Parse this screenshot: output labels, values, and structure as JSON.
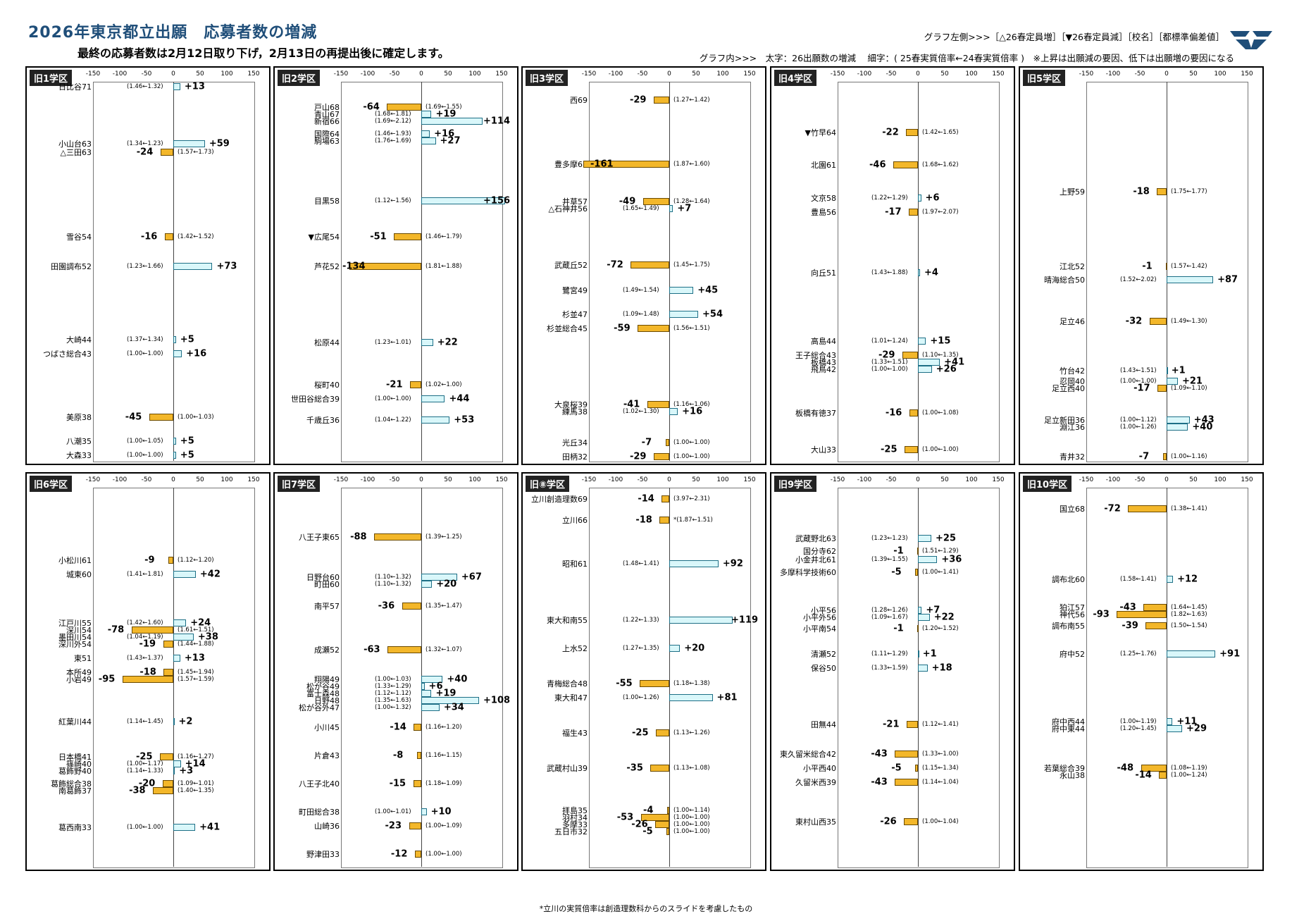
{
  "header": {
    "title": "2026年東京都立出願　応募者数の増減",
    "subtitle": "最終の応募者数は2月12日取り下げ，2月13日の再提出後に確定します。",
    "legend_left": "グラフ左側>>>［△26春定員増］［▼26春定員減］［校名］［都標準偏差値］",
    "legend_inner": "グラフ内>>>　太字：26出願数の増減　 細字：( 25春実質倍率←24春実質倍率 )　※上昇は出願減の要因、低下は出願増の要因になる",
    "footnote": "*立川の実質倍率は創造理数科からのスライドを考慮したもの",
    "logo_icon": "brand-logo-icon"
  },
  "colors": {
    "increase_fill": "#d9f7fa",
    "increase_border": "#1d6f86",
    "decrease_fill": "#f3b72a",
    "decrease_border": "#6b4a00",
    "title": "#1f4e79"
  },
  "chart_data": [
    {
      "type": "bar",
      "title": "旧1学区",
      "xlim": [
        -150,
        150
      ],
      "xticks": [
        -150,
        -100,
        -50,
        0,
        50,
        100,
        150
      ],
      "schools": [
        {
          "name": "日比谷71",
          "value": 13,
          "ratio": "(1.46←1.32)"
        },
        {
          "name": "小山台63",
          "value": 59,
          "ratio": "(1.34←1.23)"
        },
        {
          "name": "△三田63",
          "value": -24,
          "ratio": "(1.57←1.73)"
        },
        {
          "name": "雪谷54",
          "value": -16,
          "ratio": "(1.42←1.52)"
        },
        {
          "name": "田園調布52",
          "value": 73,
          "ratio": "(1.23←1.66)"
        },
        {
          "name": "大崎44",
          "value": 5,
          "ratio": "(1.37←1.34)"
        },
        {
          "name": "つばさ総合43",
          "value": 16,
          "ratio": "(1.00←1.00)"
        },
        {
          "name": "美原38",
          "value": -45,
          "ratio": "(1.00←1.03)"
        },
        {
          "name": "八潮35",
          "value": 5,
          "ratio": "(1.00←1.05)"
        },
        {
          "name": "大森33",
          "value": 5,
          "ratio": "(1.00←1.00)"
        }
      ]
    },
    {
      "type": "bar",
      "title": "旧2学区",
      "xlim": [
        -150,
        150
      ],
      "xticks": [
        -150,
        -100,
        -50,
        0,
        50,
        100,
        150
      ],
      "schools": [
        {
          "name": "戸山68",
          "value": -64,
          "ratio": "(1.69←1.55)"
        },
        {
          "name": "青山67",
          "value": 19,
          "ratio": "(1.68←1.81)"
        },
        {
          "name": "新宿66",
          "value": 114,
          "ratio": "(1.69←2.12)"
        },
        {
          "name": "国際64",
          "value": 16,
          "ratio": "(1.46←1.93)"
        },
        {
          "name": "駒場63",
          "value": 27,
          "ratio": "(1.76←1.69)"
        },
        {
          "name": "目黒58",
          "value": 156,
          "ratio": "(1.12←1.56)"
        },
        {
          "name": "▼広尾54",
          "value": -51,
          "ratio": "(1.46←1.79)"
        },
        {
          "name": "芦花52",
          "value": -134,
          "ratio": "(1.81←1.88)"
        },
        {
          "name": "松原44",
          "value": 22,
          "ratio": "(1.23←1.01)"
        },
        {
          "name": "桜町40",
          "value": -21,
          "ratio": "(1.02←1.00)"
        },
        {
          "name": "世田谷総合39",
          "value": 44,
          "ratio": "(1.00←1.00)"
        },
        {
          "name": "千歳丘36",
          "value": 53,
          "ratio": "(1.04←1.22)"
        }
      ]
    },
    {
      "type": "bar",
      "title": "旧3学区",
      "xlim": [
        -150,
        150
      ],
      "xticks": [
        -150,
        -100,
        -50,
        0,
        50,
        100,
        150
      ],
      "schools": [
        {
          "name": "西69",
          "value": -29,
          "ratio": "(1.27←1.42)"
        },
        {
          "name": "豊多摩61",
          "value": -161,
          "ratio": "(1.87←1.60)"
        },
        {
          "name": "井草57",
          "value": -49,
          "ratio": "(1.28←1.64)"
        },
        {
          "name": "△石神井56",
          "value": 7,
          "ratio": "(1.65←1.49)"
        },
        {
          "name": "武蔵丘52",
          "value": -72,
          "ratio": "(1.45←1.75)"
        },
        {
          "name": "鷺宮49",
          "value": 45,
          "ratio": "(1.49←1.54)"
        },
        {
          "name": "杉並47",
          "value": 54,
          "ratio": "(1.09←1.48)"
        },
        {
          "name": "杉並総合45",
          "value": -59,
          "ratio": "(1.56←1.51)"
        },
        {
          "name": "大泉桜39",
          "value": -41,
          "ratio": "(1.16←1.06)"
        },
        {
          "name": "練馬38",
          "value": 16,
          "ratio": "(1.02←1.30)"
        },
        {
          "name": "光丘34",
          "value": -7,
          "ratio": "(1.00←1.00)"
        },
        {
          "name": "田柄32",
          "value": -29,
          "ratio": "(1.00←1.00)"
        }
      ]
    },
    {
      "type": "bar",
      "title": "旧4学区",
      "xlim": [
        -150,
        150
      ],
      "xticks": [
        -150,
        -100,
        -50,
        0,
        50,
        100,
        150
      ],
      "schools": [
        {
          "name": "▼竹早64",
          "value": -22,
          "ratio": "(1.42←1.65)"
        },
        {
          "name": "北園61",
          "value": -46,
          "ratio": "(1.68←1.62)"
        },
        {
          "name": "文京58",
          "value": 6,
          "ratio": "(1.22←1.29)"
        },
        {
          "name": "豊島56",
          "value": -17,
          "ratio": "(1.97←2.07)"
        },
        {
          "name": "向丘51",
          "value": 4,
          "ratio": "(1.43←1.88)"
        },
        {
          "name": "高島44",
          "value": 15,
          "ratio": "(1.01←1.24)"
        },
        {
          "name": "王子総合43",
          "value": -29,
          "ratio": "(1.10←1.35)"
        },
        {
          "name": "板橋43",
          "value": 41,
          "ratio": "(1.33←1.51)"
        },
        {
          "name": "飛鳥42",
          "value": 26,
          "ratio": "(1.00←1.00)"
        },
        {
          "name": "板橋有徳37",
          "value": -16,
          "ratio": "(1.00←1.08)"
        },
        {
          "name": "大山33",
          "value": -25,
          "ratio": "(1.00←1.00)"
        }
      ]
    },
    {
      "type": "bar",
      "title": "旧5学区",
      "xlim": [
        -150,
        150
      ],
      "xticks": [
        -150,
        -100,
        -50,
        0,
        50,
        100,
        150
      ],
      "schools": [
        {
          "name": "上野59",
          "value": -18,
          "ratio": "(1.75←1.77)"
        },
        {
          "name": "江北52",
          "value": -1,
          "ratio": "(1.57←1.42)"
        },
        {
          "name": "晴海総合50",
          "value": 87,
          "ratio": "(1.52←2.02)"
        },
        {
          "name": "足立46",
          "value": -32,
          "ratio": "(1.49←1.30)"
        },
        {
          "name": "竹台42",
          "value": 1,
          "ratio": "(1.43←1.51)"
        },
        {
          "name": "忍岡40",
          "value": 21,
          "ratio": "(1.00←1.00)"
        },
        {
          "name": "足立西40",
          "value": -17,
          "ratio": "(1.09←1.10)"
        },
        {
          "name": "足立新田36",
          "value": 43,
          "ratio": "(1.00←1.12)"
        },
        {
          "name": "淵江36",
          "value": 40,
          "ratio": "(1.00←1.26)"
        },
        {
          "name": "青井32",
          "value": -7,
          "ratio": "(1.00←1.16)"
        }
      ]
    },
    {
      "type": "bar",
      "title": "旧6学区",
      "xlim": [
        -150,
        150
      ],
      "xticks": [
        -150,
        -100,
        -50,
        0,
        50,
        100,
        150
      ],
      "schools": [
        {
          "name": "小松川61",
          "value": -9,
          "ratio": "(1.12←1.20)"
        },
        {
          "name": "城東60",
          "value": 42,
          "ratio": "(1.41←1.81)"
        },
        {
          "name": "江戸川55",
          "value": 24,
          "ratio": "(1.42←1.60)"
        },
        {
          "name": "深川54",
          "value": -78,
          "ratio": "(1.61←1.51)"
        },
        {
          "name": "墨田川54",
          "value": 38,
          "ratio": "(1.04←1.19)"
        },
        {
          "name": "深川外54",
          "value": -19,
          "ratio": "(1.44←1.88)"
        },
        {
          "name": "東51",
          "value": 13,
          "ratio": "(1.43←1.37)"
        },
        {
          "name": "本所49",
          "value": -18,
          "ratio": "(1.45←1.94)"
        },
        {
          "name": "小岩49",
          "value": -95,
          "ratio": "(1.57←1.59)"
        },
        {
          "name": "紅葉川44",
          "value": 2,
          "ratio": "(1.14←1.45)"
        },
        {
          "name": "日本橋41",
          "value": -25,
          "ratio": "(1.16←1.27)"
        },
        {
          "name": "篠崎40",
          "value": 14,
          "ratio": "(1.00←1.17)"
        },
        {
          "name": "葛飾野40",
          "value": 3,
          "ratio": "(1.14←1.33)"
        },
        {
          "name": "葛飾総合38",
          "value": -20,
          "ratio": "(1.09←1.01)"
        },
        {
          "name": "南葛飾37",
          "value": -38,
          "ratio": "(1.40←1.35)"
        },
        {
          "name": "葛西南33",
          "value": 41,
          "ratio": "(1.00←1.00)"
        }
      ]
    },
    {
      "type": "bar",
      "title": "旧7学区",
      "xlim": [
        -150,
        150
      ],
      "xticks": [
        -150,
        -100,
        -50,
        0,
        50,
        100,
        150
      ],
      "schools": [
        {
          "name": "八王子東65",
          "value": -88,
          "ratio": "(1.39←1.25)"
        },
        {
          "name": "日野台60",
          "value": 67,
          "ratio": "(1.10←1.32)"
        },
        {
          "name": "町田60",
          "value": 20,
          "ratio": "(1.10←1.32)"
        },
        {
          "name": "南平57",
          "value": -36,
          "ratio": "(1.35←1.47)"
        },
        {
          "name": "成瀬52",
          "value": -63,
          "ratio": "(1.32←1.07)"
        },
        {
          "name": "翔陽49",
          "value": 40,
          "ratio": "(1.00←1.03)"
        },
        {
          "name": "松が谷49",
          "value": 6,
          "ratio": "(1.33←1.29)"
        },
        {
          "name": "富士森48",
          "value": 19,
          "ratio": "(1.12←1.12)"
        },
        {
          "name": "日野48",
          "value": 108,
          "ratio": "(1.35←1.63)"
        },
        {
          "name": "松が谷外47",
          "value": 34,
          "ratio": "(1.00←1.32)"
        },
        {
          "name": "小川45",
          "value": -14,
          "ratio": "(1.16←1.20)"
        },
        {
          "name": "片倉43",
          "value": -8,
          "ratio": "(1.16←1.15)"
        },
        {
          "name": "八王子北40",
          "value": -15,
          "ratio": "(1.18←1.09)"
        },
        {
          "name": "町田総合38",
          "value": 10,
          "ratio": "(1.00←1.01)"
        },
        {
          "name": "山崎36",
          "value": -23,
          "ratio": "(1.00←1.09)"
        },
        {
          "name": "野津田33",
          "value": -12,
          "ratio": "(1.00←1.00)"
        }
      ]
    },
    {
      "type": "bar",
      "title": "旧⑧学区",
      "xlim": [
        -150,
        150
      ],
      "xticks": [
        -150,
        -100,
        -50,
        0,
        50,
        100,
        150
      ],
      "schools": [
        {
          "name": "立川創造理数69",
          "value": -14,
          "ratio": "(3.97←2.31)"
        },
        {
          "name": "立川66",
          "value": -18,
          "ratio": "*(1.87←1.51)"
        },
        {
          "name": "昭和61",
          "value": 92,
          "ratio": "(1.48←1.41)"
        },
        {
          "name": "東大和南55",
          "value": 119,
          "ratio": "(1.22←1.33)"
        },
        {
          "name": "上水52",
          "value": 20,
          "ratio": "(1.27←1.35)"
        },
        {
          "name": "青梅総合48",
          "value": -55,
          "ratio": "(1.18←1.38)"
        },
        {
          "name": "東大和47",
          "value": 81,
          "ratio": "(1.00←1.26)"
        },
        {
          "name": "福生43",
          "value": -25,
          "ratio": "(1.13←1.26)"
        },
        {
          "name": "武蔵村山39",
          "value": -35,
          "ratio": "(1.13←1.08)"
        },
        {
          "name": "拝島35",
          "value": -4,
          "ratio": "(1.00←1.14)"
        },
        {
          "name": "羽村34",
          "value": -53,
          "ratio": "(1.00←1.00)"
        },
        {
          "name": "多摩33",
          "value": -26,
          "ratio": "(1.00←1.00)"
        },
        {
          "name": "五日市32",
          "value": -5,
          "ratio": "(1.00←1.00)"
        }
      ]
    },
    {
      "type": "bar",
      "title": "旧9学区",
      "xlim": [
        -150,
        150
      ],
      "xticks": [
        -150,
        -100,
        -50,
        0,
        50,
        100,
        150
      ],
      "schools": [
        {
          "name": "武蔵野北63",
          "value": 25,
          "ratio": "(1.23←1.23)"
        },
        {
          "name": "国分寺62",
          "value": -1,
          "ratio": "(1.51←1.29)"
        },
        {
          "name": "小金井北61",
          "value": 36,
          "ratio": "(1.39←1.55)"
        },
        {
          "name": "多摩科学技術60",
          "value": -5,
          "ratio": "(1.00←1.41)"
        },
        {
          "name": "小平56",
          "value": 7,
          "ratio": "(1.28←1.26)"
        },
        {
          "name": "小平外56",
          "value": 22,
          "ratio": "(1.09←1.67)"
        },
        {
          "name": "小平南54",
          "value": -1,
          "ratio": "(1.20←1.52)"
        },
        {
          "name": "清瀬52",
          "value": 1,
          "ratio": "(1.11←1.29)"
        },
        {
          "name": "保谷50",
          "value": 18,
          "ratio": "(1.33←1.59)"
        },
        {
          "name": "田無44",
          "value": -21,
          "ratio": "(1.12←1.41)"
        },
        {
          "name": "東久留米総合42",
          "value": -43,
          "ratio": "(1.33←1.00)"
        },
        {
          "name": "小平西40",
          "value": -5,
          "ratio": "(1.15←1.34)"
        },
        {
          "name": "久留米西39",
          "value": -43,
          "ratio": "(1.14←1.04)"
        },
        {
          "name": "東村山西35",
          "value": -26,
          "ratio": "(1.00←1.04)"
        }
      ]
    },
    {
      "type": "bar",
      "title": "旧10学区",
      "xlim": [
        -150,
        150
      ],
      "xticks": [
        -150,
        -100,
        -50,
        0,
        50,
        100,
        150
      ],
      "schools": [
        {
          "name": "国立68",
          "value": -72,
          "ratio": "(1.38←1.41)"
        },
        {
          "name": "調布北60",
          "value": 12,
          "ratio": "(1.58←1.41)"
        },
        {
          "name": "狛江57",
          "value": -43,
          "ratio": "(1.64←1.45)"
        },
        {
          "name": "神代56",
          "value": -93,
          "ratio": "(1.82←1.63)"
        },
        {
          "name": "調布南55",
          "value": -39,
          "ratio": "(1.50←1.54)"
        },
        {
          "name": "府中52",
          "value": 91,
          "ratio": "(1.25←1.76)"
        },
        {
          "name": "府中西44",
          "value": 11,
          "ratio": "(1.00←1.19)"
        },
        {
          "name": "府中東44",
          "value": 29,
          "ratio": "(1.20←1.45)"
        },
        {
          "name": "若葉総合39",
          "value": -48,
          "ratio": "(1.08←1.19)"
        },
        {
          "name": "永山38",
          "value": -14,
          "ratio": "(1.00←1.24)"
        }
      ]
    }
  ]
}
